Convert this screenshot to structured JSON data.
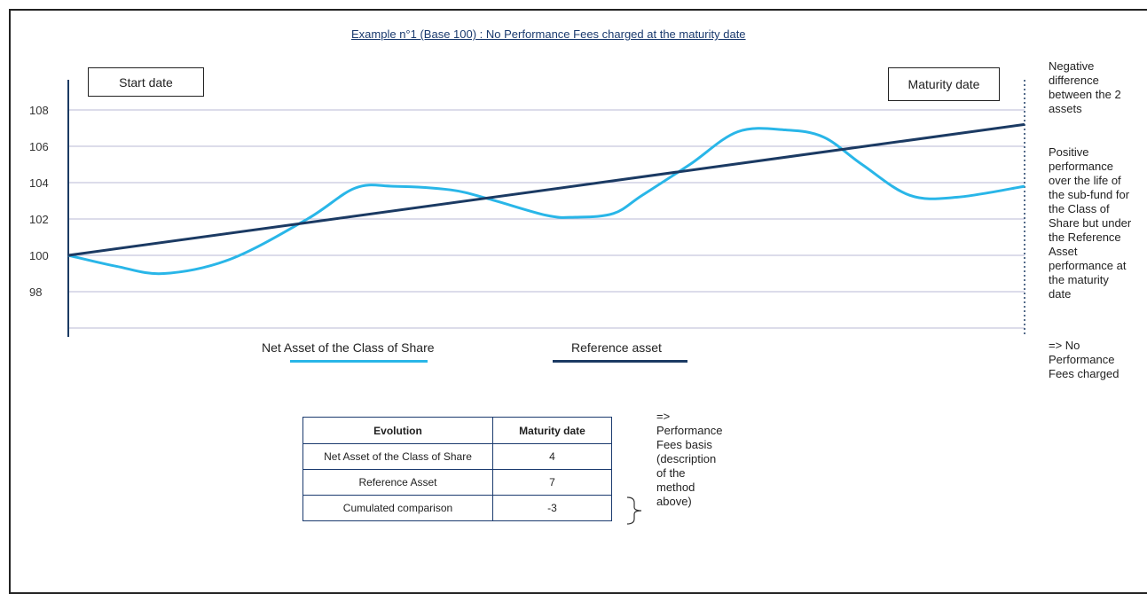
{
  "title": "Example n°1 (Base 100) : No Performance Fees charged at the maturity date",
  "labels": {
    "start": "Start date",
    "maturity": "Maturity date"
  },
  "chart_data": {
    "type": "line",
    "y_ticks": [
      98,
      100,
      102,
      104,
      106,
      108
    ],
    "ylim": [
      96,
      110
    ],
    "xlim": [
      0,
      1
    ],
    "grid": true,
    "series": [
      {
        "name": "Net Asset of the Class of Share",
        "color": "#29b6e8",
        "x": [
          0,
          0.05,
          0.1,
          0.17,
          0.25,
          0.3,
          0.34,
          0.4,
          0.44,
          0.5,
          0.53,
          0.57,
          0.6,
          0.65,
          0.7,
          0.75,
          0.79,
          0.83,
          0.88,
          0.93,
          1.0
        ],
        "y": [
          100,
          99.4,
          99.0,
          99.8,
          102.0,
          103.7,
          103.8,
          103.6,
          103.1,
          102.2,
          102.1,
          102.3,
          103.3,
          105.0,
          106.8,
          106.9,
          106.5,
          105.0,
          103.3,
          103.2,
          103.8
        ]
      },
      {
        "name": "Reference asset",
        "color": "#1b3a63",
        "x": [
          0,
          1
        ],
        "y": [
          100,
          107.2
        ]
      }
    ]
  },
  "side_note": {
    "negative": [
      "Negative",
      "difference",
      "between the 2",
      "assets"
    ],
    "positive": [
      "Positive",
      "performance",
      "over the life of",
      "the sub-fund for",
      "the Class of",
      "Share but under",
      "the Reference",
      "Asset",
      "performance at",
      "the maturity",
      "date"
    ],
    "conclusion": [
      "=> No",
      "Performance",
      "Fees charged"
    ]
  },
  "table": {
    "headers": [
      "Evolution",
      "Maturity date"
    ],
    "rows": [
      [
        "Net Asset of the Class of Share",
        "4"
      ],
      [
        "Reference Asset",
        "7"
      ],
      [
        "Cumulated comparison",
        "-3"
      ]
    ]
  },
  "table_note": [
    "=>",
    "Performance",
    "Fees basis",
    "(description",
    "of the",
    "method",
    "above)"
  ]
}
